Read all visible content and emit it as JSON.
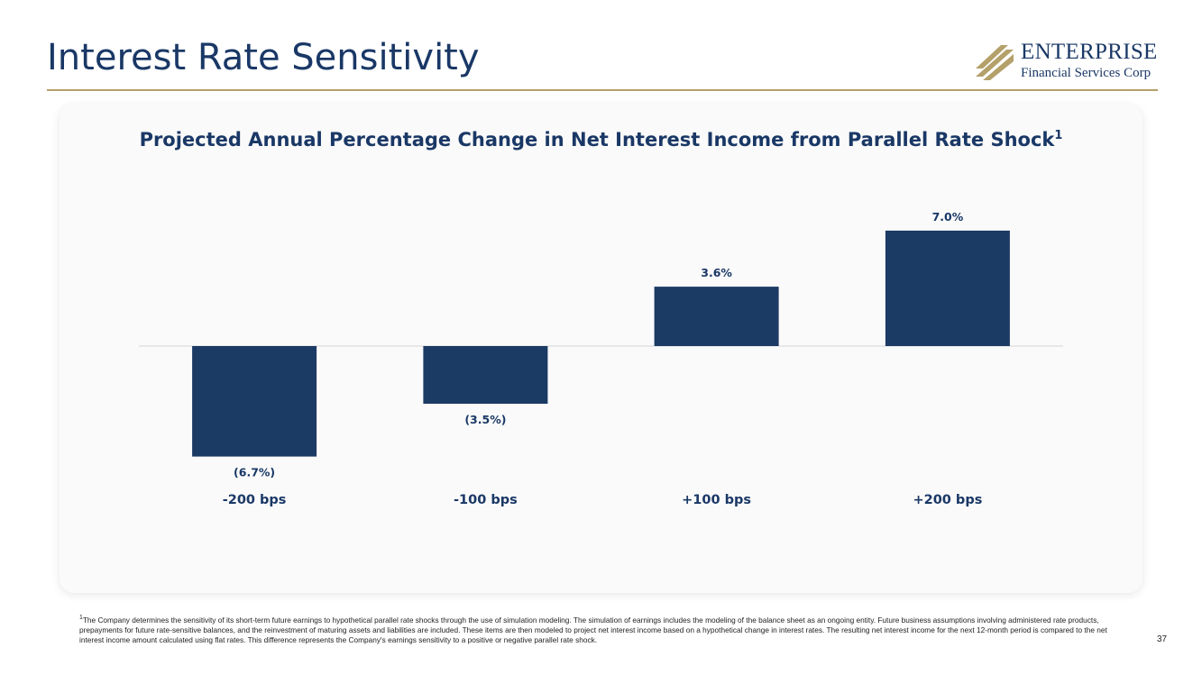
{
  "slide": {
    "title": "Interest Rate Sensitivity",
    "page_number": "37"
  },
  "logo": {
    "name": "ENTERPRISE",
    "subtitle": "Financial Services Corp"
  },
  "footnote": {
    "marker": "1",
    "text": "The Company determines the sensitivity of its short-term future earnings to hypothetical parallel rate shocks through the use of simulation modeling. The simulation of earnings includes the modeling of the balance sheet as an ongoing entity. Future business assumptions involving administered rate products, prepayments for future rate-sensitive balances, and the reinvestment of maturing assets and liabilities are included. These items are then modeled to project net interest income based on a hypothetical change in interest rates. The resulting net interest income for the next 12-month period is compared to the net interest income amount calculated using flat rates. This difference represents the Company's earnings sensitivity to a positive or negative parallel rate shock."
  },
  "colors": {
    "brand_navy": "#1a3866",
    "bar": "#1b3a64",
    "accent_gold": "#b4a06a"
  },
  "chart_data": {
    "type": "bar",
    "title": "Projected Annual Percentage Change in Net Interest Income from Parallel Rate Shock",
    "title_superscript": "1",
    "categories": [
      "-200 bps",
      "-100 bps",
      "+100 bps",
      "+200 bps"
    ],
    "values": [
      -6.7,
      -3.5,
      3.6,
      7.0
    ],
    "data_labels": [
      "(6.7%)",
      "(3.5%)",
      "3.6%",
      "7.0%"
    ],
    "unit": "%",
    "xlabel": "",
    "ylabel": "",
    "ylim": [
      -8,
      8
    ],
    "grid": false,
    "legend": "none"
  }
}
